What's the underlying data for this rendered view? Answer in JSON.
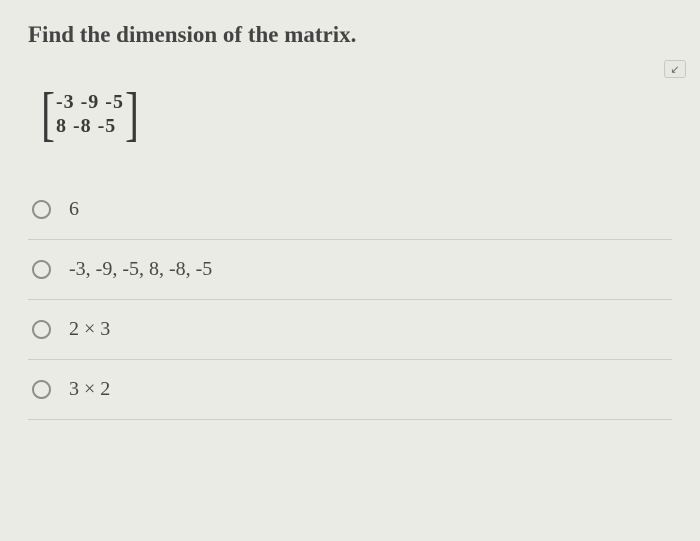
{
  "question": "Find the dimension of the matrix.",
  "matrix": {
    "rows": [
      "-3 -9 -5",
      " 8 -8 -5"
    ]
  },
  "options": [
    {
      "label": "6"
    },
    {
      "label": "-3, -9, -5, 8, -8, -5"
    },
    {
      "label": "2 × 3"
    },
    {
      "label": "3 × 2"
    }
  ],
  "colors": {
    "background": "#ebebe5",
    "text": "#3d3d3d",
    "divider": "#cfcfc8",
    "radio_border": "#8f8f88"
  },
  "close_icon": "↙"
}
